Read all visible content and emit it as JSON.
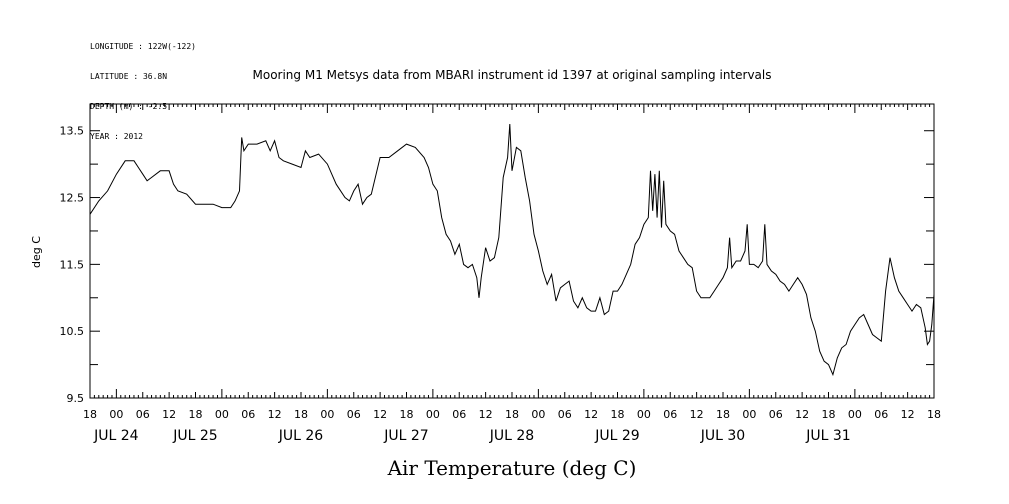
{
  "header": {
    "meta_lines": [
      "LONGITUDE : 122W(-122)",
      "LATITUDE : 36.8N",
      "DEPTH (m) : -2.5",
      "YEAR : 2012"
    ]
  },
  "chart_data": {
    "type": "line",
    "title": "Mooring M1 Metsys data from MBARI instrument id 1397 at original sampling intervals",
    "xlabel": "Air Temperature (deg C)",
    "ylabel": "deg C",
    "ylim": [
      9.5,
      13.9
    ],
    "yticks": [
      9.5,
      10.5,
      11.5,
      12.5,
      13.5
    ],
    "x_hour_ticks": [
      "18",
      "00",
      "06",
      "12",
      "18",
      "00",
      "06",
      "12",
      "18",
      "00",
      "06",
      "12",
      "18",
      "00",
      "06",
      "12",
      "18",
      "00",
      "06",
      "12",
      "18",
      "00",
      "06",
      "12",
      "18",
      "00",
      "06",
      "12",
      "18",
      "00",
      "06",
      "12",
      "18"
    ],
    "x_day_labels": [
      {
        "label": "JUL 24",
        "hour": 0
      },
      {
        "label": "JUL 25",
        "hour": 18
      },
      {
        "label": "JUL 26",
        "hour": 42
      },
      {
        "label": "JUL 27",
        "hour": 66
      },
      {
        "label": "JUL 28",
        "hour": 90
      },
      {
        "label": "JUL 29",
        "hour": 114
      },
      {
        "label": "JUL 30",
        "hour": 138
      },
      {
        "label": "JUL 31",
        "hour": 162
      }
    ],
    "x_range_hours": [
      -6,
      186
    ],
    "series": [
      {
        "points": [
          [
            -6,
            12.25
          ],
          [
            -4,
            12.45
          ],
          [
            -2,
            12.6
          ],
          [
            0,
            12.85
          ],
          [
            2,
            13.05
          ],
          [
            4,
            13.05
          ],
          [
            5,
            12.95
          ],
          [
            6,
            12.85
          ],
          [
            7,
            12.75
          ],
          [
            8,
            12.8
          ],
          [
            10,
            12.9
          ],
          [
            12,
            12.9
          ],
          [
            13,
            12.7
          ],
          [
            14,
            12.6
          ],
          [
            16,
            12.55
          ],
          [
            18,
            12.4
          ],
          [
            20,
            12.4
          ],
          [
            22,
            12.4
          ],
          [
            24,
            12.35
          ],
          [
            26,
            12.35
          ],
          [
            27,
            12.45
          ],
          [
            28,
            12.6
          ],
          [
            28.5,
            13.4
          ],
          [
            29,
            13.2
          ],
          [
            30,
            13.3
          ],
          [
            32,
            13.3
          ],
          [
            34,
            13.35
          ],
          [
            35,
            13.2
          ],
          [
            36,
            13.35
          ],
          [
            37,
            13.1
          ],
          [
            38,
            13.05
          ],
          [
            40,
            13.0
          ],
          [
            42,
            12.95
          ],
          [
            43,
            13.2
          ],
          [
            44,
            13.1
          ],
          [
            46,
            13.15
          ],
          [
            48,
            13.0
          ],
          [
            49,
            12.85
          ],
          [
            50,
            12.7
          ],
          [
            52,
            12.5
          ],
          [
            53,
            12.45
          ],
          [
            54,
            12.6
          ],
          [
            55,
            12.7
          ],
          [
            56,
            12.4
          ],
          [
            57,
            12.5
          ],
          [
            58,
            12.55
          ],
          [
            60,
            13.1
          ],
          [
            62,
            13.1
          ],
          [
            64,
            13.2
          ],
          [
            66,
            13.3
          ],
          [
            68,
            13.25
          ],
          [
            70,
            13.1
          ],
          [
            71,
            12.95
          ],
          [
            72,
            12.7
          ],
          [
            73,
            12.6
          ],
          [
            74,
            12.2
          ],
          [
            75,
            11.95
          ],
          [
            76,
            11.85
          ],
          [
            77,
            11.65
          ],
          [
            78,
            11.8
          ],
          [
            79,
            11.5
          ],
          [
            80,
            11.45
          ],
          [
            81,
            11.5
          ],
          [
            82,
            11.3
          ],
          [
            82.5,
            11.0
          ],
          [
            83,
            11.3
          ],
          [
            84,
            11.75
          ],
          [
            85,
            11.55
          ],
          [
            86,
            11.6
          ],
          [
            87,
            11.9
          ],
          [
            88,
            12.8
          ],
          [
            89,
            13.1
          ],
          [
            89.5,
            13.6
          ],
          [
            90,
            12.9
          ],
          [
            91,
            13.25
          ],
          [
            92,
            13.2
          ],
          [
            93,
            12.8
          ],
          [
            94,
            12.45
          ],
          [
            95,
            11.95
          ],
          [
            96,
            11.7
          ],
          [
            97,
            11.4
          ],
          [
            98,
            11.2
          ],
          [
            99,
            11.35
          ],
          [
            100,
            10.95
          ],
          [
            101,
            11.15
          ],
          [
            102,
            11.2
          ],
          [
            103,
            11.25
          ],
          [
            104,
            10.95
          ],
          [
            105,
            10.85
          ],
          [
            106,
            11.0
          ],
          [
            107,
            10.85
          ],
          [
            108,
            10.8
          ],
          [
            109,
            10.8
          ],
          [
            110,
            11.0
          ],
          [
            111,
            10.75
          ],
          [
            112,
            10.8
          ],
          [
            113,
            11.1
          ],
          [
            114,
            11.1
          ],
          [
            115,
            11.2
          ],
          [
            116,
            11.35
          ],
          [
            117,
            11.5
          ],
          [
            118,
            11.8
          ],
          [
            119,
            11.9
          ],
          [
            120,
            12.1
          ],
          [
            121,
            12.2
          ],
          [
            121.5,
            12.9
          ],
          [
            122,
            12.3
          ],
          [
            122.5,
            12.85
          ],
          [
            123,
            12.2
          ],
          [
            123.5,
            12.9
          ],
          [
            124,
            12.05
          ],
          [
            124.5,
            12.75
          ],
          [
            125,
            12.1
          ],
          [
            126,
            12.0
          ],
          [
            127,
            11.95
          ],
          [
            128,
            11.7
          ],
          [
            129,
            11.6
          ],
          [
            130,
            11.5
          ],
          [
            131,
            11.45
          ],
          [
            132,
            11.1
          ],
          [
            133,
            11.0
          ],
          [
            134,
            11.0
          ],
          [
            135,
            11.0
          ],
          [
            136,
            11.1
          ],
          [
            137,
            11.2
          ],
          [
            138,
            11.3
          ],
          [
            139,
            11.45
          ],
          [
            139.5,
            11.9
          ],
          [
            140,
            11.45
          ],
          [
            141,
            11.55
          ],
          [
            142,
            11.55
          ],
          [
            143,
            11.7
          ],
          [
            143.5,
            12.1
          ],
          [
            144,
            11.5
          ],
          [
            145,
            11.5
          ],
          [
            146,
            11.45
          ],
          [
            147,
            11.55
          ],
          [
            147.5,
            12.1
          ],
          [
            148,
            11.5
          ],
          [
            149,
            11.4
          ],
          [
            150,
            11.35
          ],
          [
            151,
            11.25
          ],
          [
            152,
            11.2
          ],
          [
            153,
            11.1
          ],
          [
            154,
            11.2
          ],
          [
            155,
            11.3
          ],
          [
            156,
            11.2
          ],
          [
            157,
            11.05
          ],
          [
            158,
            10.7
          ],
          [
            159,
            10.5
          ],
          [
            160,
            10.2
          ],
          [
            161,
            10.05
          ],
          [
            162,
            10.0
          ],
          [
            163,
            9.85
          ],
          [
            164,
            10.1
          ],
          [
            165,
            10.25
          ],
          [
            166,
            10.3
          ],
          [
            167,
            10.5
          ],
          [
            168,
            10.6
          ],
          [
            169,
            10.7
          ],
          [
            170,
            10.75
          ],
          [
            171,
            10.6
          ],
          [
            172,
            10.45
          ],
          [
            173,
            10.4
          ],
          [
            174,
            10.35
          ],
          [
            175,
            11.1
          ],
          [
            176,
            11.6
          ],
          [
            177,
            11.3
          ],
          [
            178,
            11.1
          ],
          [
            179,
            11.0
          ],
          [
            180,
            10.9
          ],
          [
            181,
            10.8
          ],
          [
            182,
            10.9
          ],
          [
            183,
            10.85
          ],
          [
            184,
            10.55
          ],
          [
            184.5,
            10.3
          ],
          [
            185,
            10.35
          ],
          [
            185.5,
            10.6
          ],
          [
            186,
            11.05
          ]
        ]
      }
    ]
  }
}
